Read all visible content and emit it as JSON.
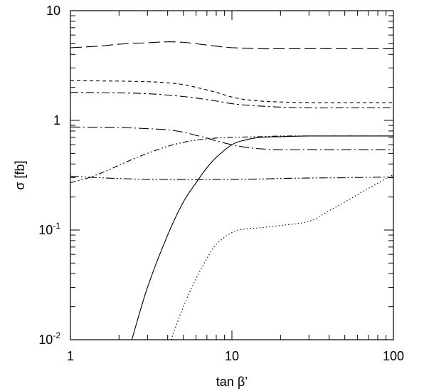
{
  "chart_data": {
    "type": "line",
    "title": "",
    "xlabel": "tan β’",
    "ylabel": "σ [fb]",
    "xscale": "log",
    "yscale": "log",
    "xlim": [
      1,
      100
    ],
    "ylim": [
      0.01,
      10
    ],
    "grid": false,
    "legend": "none",
    "x_ticks": [
      {
        "value": 1,
        "label": "1"
      },
      {
        "value": 10,
        "label": "10"
      },
      {
        "value": 100,
        "label": "100"
      }
    ],
    "y_ticks": [
      {
        "value": 0.01,
        "base": "10",
        "exp": "-2"
      },
      {
        "value": 0.1,
        "base": "10",
        "exp": "-1"
      },
      {
        "value": 1,
        "base": "1",
        "exp": ""
      },
      {
        "value": 10,
        "base": "10",
        "exp": ""
      }
    ],
    "series": [
      {
        "style": "long-dash",
        "x": [
          1,
          1.5,
          2,
          3,
          4,
          5,
          6,
          8,
          10,
          15,
          20,
          30,
          50,
          100
        ],
        "y": [
          4.6,
          4.75,
          4.95,
          5.1,
          5.2,
          5.15,
          5.0,
          4.75,
          4.6,
          4.5,
          4.5,
          4.5,
          4.5,
          4.5
        ]
      },
      {
        "style": "short-dash",
        "x": [
          1,
          2,
          3,
          4,
          5,
          6,
          8,
          10,
          12,
          15,
          20,
          30,
          50,
          100
        ],
        "y": [
          2.3,
          2.28,
          2.25,
          2.2,
          2.12,
          2.0,
          1.8,
          1.63,
          1.55,
          1.5,
          1.47,
          1.45,
          1.45,
          1.45
        ]
      },
      {
        "style": "medium-dash",
        "x": [
          1,
          2,
          3,
          4,
          5,
          6,
          8,
          10,
          12,
          15,
          20,
          30,
          50,
          100
        ],
        "y": [
          1.8,
          1.78,
          1.75,
          1.7,
          1.65,
          1.6,
          1.5,
          1.42,
          1.38,
          1.35,
          1.32,
          1.3,
          1.3,
          1.3
        ]
      },
      {
        "style": "dash-dot",
        "x": [
          1,
          2,
          3,
          4,
          5,
          6,
          7,
          8,
          10,
          12,
          15,
          20,
          30,
          50,
          100
        ],
        "y": [
          0.87,
          0.86,
          0.84,
          0.82,
          0.78,
          0.73,
          0.69,
          0.65,
          0.6,
          0.57,
          0.55,
          0.54,
          0.54,
          0.54,
          0.54
        ]
      },
      {
        "style": "dash-dot-dot-rising",
        "x": [
          1,
          1.3,
          1.7,
          2,
          2.5,
          3,
          4,
          5,
          6,
          8,
          10,
          15,
          20,
          30,
          50,
          100
        ],
        "y": [
          0.27,
          0.3,
          0.35,
          0.39,
          0.45,
          0.5,
          0.58,
          0.63,
          0.66,
          0.69,
          0.7,
          0.71,
          0.72,
          0.72,
          0.72,
          0.72
        ]
      },
      {
        "style": "dash-dot-dot-flat",
        "x": [
          1,
          1.5,
          2,
          3,
          5,
          7,
          10,
          15,
          20,
          30,
          50,
          100
        ],
        "y": [
          0.31,
          0.3,
          0.295,
          0.29,
          0.288,
          0.288,
          0.29,
          0.292,
          0.295,
          0.298,
          0.3,
          0.305
        ]
      },
      {
        "style": "solid",
        "x": [
          2.4,
          3,
          4,
          5,
          6,
          7,
          8,
          10,
          12,
          15,
          20,
          30,
          50,
          100
        ],
        "y": [
          0.01,
          0.03,
          0.09,
          0.18,
          0.27,
          0.37,
          0.46,
          0.6,
          0.66,
          0.7,
          0.71,
          0.72,
          0.72,
          0.72
        ]
      },
      {
        "style": "dotted",
        "x": [
          4.2,
          5,
          6,
          7,
          8,
          10,
          12,
          15,
          20,
          30,
          40,
          50,
          70,
          100
        ],
        "y": [
          0.01,
          0.02,
          0.036,
          0.055,
          0.074,
          0.095,
          0.102,
          0.105,
          0.11,
          0.12,
          0.15,
          0.18,
          0.24,
          0.32
        ]
      }
    ]
  }
}
